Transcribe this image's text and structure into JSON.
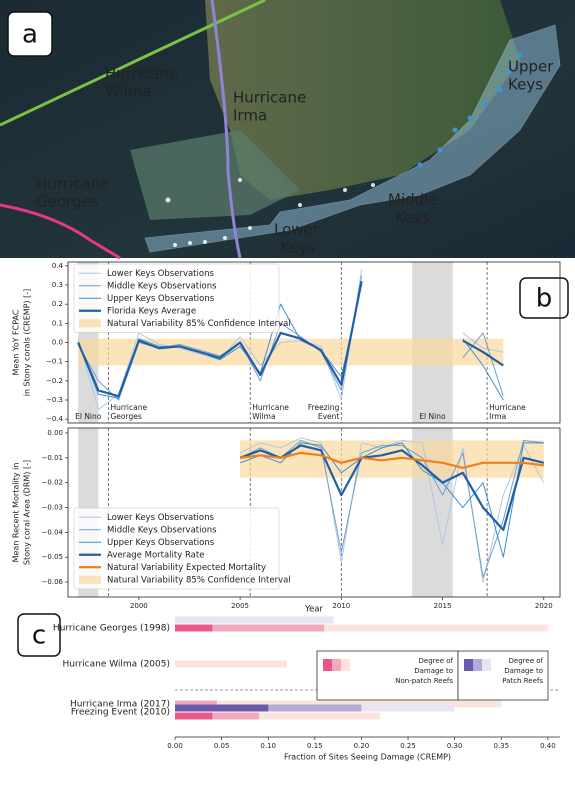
{
  "panel_labels": [
    "a",
    "b",
    "c"
  ],
  "map": {
    "labels": [
      {
        "lines": [
          "Hurricane",
          "Wilma"
        ],
        "color": "#7cc242"
      },
      {
        "lines": [
          "Hurricane",
          "Irma"
        ],
        "color": "#8f84d6"
      },
      {
        "lines": [
          "Hurricane",
          "Georges"
        ],
        "color": "#e8368c"
      },
      {
        "lines": [
          "Upper",
          "Keys"
        ],
        "color": "#3a95dc"
      },
      {
        "lines": [
          "Middle",
          "Keys"
        ],
        "color": "#a4c3ea"
      },
      {
        "lines": [
          "Lower",
          "Keys"
        ],
        "color": "#ffffff"
      }
    ]
  },
  "chart_data": [
    {
      "type": "line",
      "ylabel": [
        "Mean YoY FCPAC",
        "in Stony corals (CREMP) [-]"
      ],
      "xlim": [
        1996.5,
        2020.8
      ],
      "ylim": [
        -0.42,
        0.42
      ],
      "yticks": [
        {
          "value": 0.4,
          "label": "0.4"
        },
        {
          "value": 0.3,
          "label": "0.3"
        },
        {
          "value": 0.2,
          "label": "0.2"
        },
        {
          "value": 0.1,
          "label": "0.1"
        },
        {
          "value": 0,
          "label": "0.0"
        },
        {
          "value": -0.1,
          "label": "−0.1"
        },
        {
          "value": -0.2,
          "label": "−0.2"
        },
        {
          "value": -0.3,
          "label": "−0.3"
        },
        {
          "value": -0.4,
          "label": "−0.4"
        }
      ],
      "legend": "upper left",
      "spans": [
        {
          "x0": 1997,
          "x1": 1998,
          "label": [
            "El Nino"
          ]
        },
        {
          "x0": 2013.5,
          "x1": 2015.5,
          "label": [
            "El Nino"
          ]
        }
      ],
      "vlines": [
        {
          "x": 1998.5,
          "label": [
            "Hurricane",
            "Georges"
          ],
          "anchor": "start"
        },
        {
          "x": 2005.5,
          "label": [
            "Hurricane",
            "Wilma"
          ],
          "anchor": "start"
        },
        {
          "x": 2010,
          "label": [
            "Freezing",
            "Event"
          ],
          "anchor": "end"
        },
        {
          "x": 2017.2,
          "label": [
            "Hurricane",
            "Irma"
          ],
          "anchor": "start"
        }
      ],
      "x": [
        1997,
        1998,
        1999,
        2000,
        2001,
        2002,
        2003,
        2004,
        2005,
        2006,
        2007,
        2008,
        2009,
        2010,
        2011,
        2012,
        2013,
        2014,
        2015,
        2016,
        2017,
        2018
      ],
      "series": [
        {
          "name": "Lower Keys Observations",
          "color": "#aec8e4",
          "width": 1,
          "values": [
            0.02,
            -0.35,
            -0.27,
            0.05,
            -0.01,
            -0.03,
            -0.06,
            -0.09,
            0.03,
            -0.12,
            0.0,
            0.01,
            -0.02,
            -0.3,
            0.38,
            null,
            null,
            null,
            null,
            0.05,
            -0.03,
            -0.05
          ]
        },
        {
          "name": "Middle Keys Observations",
          "color": "#6f9fd2",
          "width": 1,
          "values": [
            -0.01,
            -0.2,
            -0.3,
            0.0,
            -0.03,
            -0.01,
            -0.04,
            -0.07,
            0.0,
            -0.2,
            0.1,
            0.03,
            -0.05,
            -0.25,
            0.35,
            null,
            null,
            null,
            null,
            -0.08,
            0.05,
            -0.28
          ]
        },
        {
          "name": "Upper Keys Observations",
          "color": "#3a8fd0",
          "width": 1,
          "values": [
            0.0,
            -0.27,
            -0.29,
            0.02,
            -0.02,
            -0.02,
            -0.05,
            -0.09,
            -0.02,
            -0.16,
            0.2,
            0.01,
            -0.04,
            -0.18,
            0.3,
            null,
            null,
            null,
            null,
            0.02,
            -0.12,
            -0.3
          ]
        },
        {
          "name": "Florida Keys Average",
          "color": "#1f5fa8",
          "width": 2.2,
          "values": [
            0.0,
            -0.25,
            -0.28,
            0.01,
            -0.03,
            -0.02,
            -0.05,
            -0.08,
            0.0,
            -0.17,
            0.05,
            0.02,
            -0.04,
            -0.22,
            0.32,
            null,
            null,
            null,
            null,
            0.01,
            -0.05,
            -0.12
          ]
        }
      ],
      "band": {
        "name": "Natural Variability 85% Confidence Interval",
        "color": "#fbd99c",
        "x": [
          1997,
          2018
        ],
        "lower": [
          -0.12,
          -0.12
        ],
        "upper": [
          0.02,
          0.02
        ]
      }
    },
    {
      "type": "line",
      "ylabel": [
        "Mean Recent Mortality in",
        "Stony coral Area (DRM) [-]"
      ],
      "xlabel": "Year",
      "xlim": [
        1996.5,
        2020.8
      ],
      "ylim": [
        -0.066,
        0.002
      ],
      "xticks": [
        2000,
        2005,
        2010,
        2015,
        2020
      ],
      "yticks": [
        {
          "value": 0,
          "label": "0.00"
        },
        {
          "value": -0.01,
          "label": "−0.01"
        },
        {
          "value": -0.02,
          "label": "−0.02"
        },
        {
          "value": -0.03,
          "label": "−0.03"
        },
        {
          "value": -0.04,
          "label": "−0.04"
        },
        {
          "value": -0.05,
          "label": "−0.05"
        },
        {
          "value": -0.06,
          "label": "−0.06"
        }
      ],
      "legend": "lower left",
      "spans": [
        {
          "x0": 1997,
          "x1": 1998
        },
        {
          "x0": 2013.5,
          "x1": 2015.5
        }
      ],
      "vlines": [
        {
          "x": 1998.5
        },
        {
          "x": 2005.5
        },
        {
          "x": 2010
        },
        {
          "x": 2017.2
        }
      ],
      "x": [
        2005,
        2006,
        2007,
        2008,
        2009,
        2010,
        2011,
        2012,
        2013,
        2014,
        2015,
        2016,
        2017,
        2018,
        2019,
        2020
      ],
      "series": [
        {
          "name": "Lower Keys Observations",
          "color": "#aec8e4",
          "width": 1,
          "values": [
            -0.008,
            -0.004,
            -0.006,
            -0.002,
            -0.004,
            -0.052,
            -0.004,
            -0.006,
            -0.003,
            -0.004,
            -0.045,
            -0.006,
            -0.06,
            -0.025,
            -0.005,
            -0.02
          ]
        },
        {
          "name": "Middle Keys Observations",
          "color": "#6f9fd2",
          "width": 1,
          "values": [
            -0.01,
            -0.006,
            -0.01,
            -0.003,
            -0.006,
            -0.048,
            -0.008,
            -0.005,
            -0.005,
            -0.01,
            -0.025,
            -0.008,
            -0.058,
            -0.035,
            -0.003,
            -0.004
          ]
        },
        {
          "name": "Upper Keys Observations",
          "color": "#3a8fd0",
          "width": 1,
          "values": [
            -0.012,
            -0.009,
            -0.012,
            -0.004,
            -0.005,
            -0.016,
            -0.01,
            -0.006,
            -0.004,
            -0.015,
            -0.02,
            -0.03,
            -0.02,
            -0.05,
            -0.004,
            -0.004
          ]
        },
        {
          "name": "Average Mortality Rate",
          "color": "#1f5fa8",
          "width": 2.2,
          "values": [
            -0.01,
            -0.007,
            -0.01,
            -0.005,
            -0.007,
            -0.025,
            -0.01,
            -0.009,
            -0.007,
            -0.013,
            -0.02,
            -0.016,
            -0.03,
            -0.039,
            -0.01,
            -0.012
          ]
        },
        {
          "name": "Natural Variability Expected Mortality",
          "color": "#f07f1a",
          "width": 2.2,
          "values": [
            -0.01,
            -0.009,
            -0.01,
            -0.008,
            -0.009,
            -0.012,
            -0.01,
            -0.011,
            -0.01,
            -0.011,
            -0.012,
            -0.014,
            -0.012,
            -0.012,
            -0.012,
            -0.013
          ]
        }
      ],
      "band": {
        "name": "Natural Variability 85% Confidence Interval",
        "color": "#fbd99c",
        "x": [
          2005,
          2020
        ],
        "lower": [
          -0.018,
          -0.018
        ],
        "upper": [
          -0.003,
          -0.003
        ]
      }
    },
    {
      "type": "bar",
      "orientation": "horizontal",
      "xlabel": "Fraction of Sites Seeing Damage (CREMP)",
      "xlim": [
        0,
        0.413
      ],
      "xticks": [
        {
          "value": 0,
          "label": "0.00"
        },
        {
          "value": 0.05,
          "label": "0.05"
        },
        {
          "value": 0.1,
          "label": "0.10"
        },
        {
          "value": 0.15,
          "label": "0.15"
        },
        {
          "value": 0.2,
          "label": "0.20"
        },
        {
          "value": 0.25,
          "label": "0.25"
        },
        {
          "value": 0.3,
          "label": "0.30"
        },
        {
          "value": 0.35,
          "label": "0.35"
        },
        {
          "value": 0.4,
          "label": "0.40"
        }
      ],
      "categories": [
        "Hurricane Georges (1998)",
        "Hurricane Wilma (2005)",
        "Hurricane Irma (2017)",
        "Freezing Event (2010)"
      ],
      "groups": [
        {
          "title": [
            "Degree of",
            "Damage to",
            "Non-patch Reefs"
          ],
          "series": [
            {
              "color": "#e8588a",
              "values": [
                0.04,
                null,
                null,
                0.04
              ]
            },
            {
              "color": "#f3a9bc",
              "values": [
                0.16,
                null,
                0.045,
                0.09
              ]
            },
            {
              "color": "#fce3dd",
              "values": [
                0.4,
                0.12,
                0.35,
                0.22
              ]
            }
          ]
        },
        {
          "title": [
            "Degree of",
            "Damage to",
            "Patch Reefs"
          ],
          "series": [
            {
              "color": "#6a5aab",
              "values": [
                null,
                null,
                null,
                0.1
              ]
            },
            {
              "color": "#b3acd9",
              "values": [
                null,
                null,
                null,
                0.2
              ]
            },
            {
              "color": "#e7e5f2",
              "values": [
                0.17,
                null,
                null,
                0.3
              ]
            }
          ]
        }
      ]
    }
  ]
}
